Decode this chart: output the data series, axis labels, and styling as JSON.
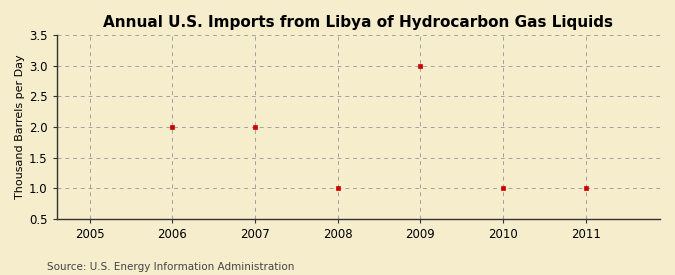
{
  "title": "Annual U.S. Imports from Libya of Hydrocarbon Gas Liquids",
  "ylabel": "Thousand Barrels per Day",
  "source": "Source: U.S. Energy Information Administration",
  "years": [
    2006,
    2007,
    2008,
    2009,
    2010,
    2011
  ],
  "values": [
    2.0,
    2.0,
    1.0,
    3.0,
    1.0,
    1.0
  ],
  "xlim": [
    2004.6,
    2011.9
  ],
  "ylim": [
    0.5,
    3.5
  ],
  "xticks": [
    2005,
    2006,
    2007,
    2008,
    2009,
    2010,
    2011
  ],
  "yticks": [
    0.5,
    1.0,
    1.5,
    2.0,
    2.5,
    3.0,
    3.5
  ],
  "background_color": "#f5edcc",
  "plot_bg_color": "#f5edcc",
  "marker_color": "#cc0000",
  "marker": "s",
  "marker_size": 3.5,
  "grid_color": "#999999",
  "title_fontsize": 11,
  "label_fontsize": 8,
  "tick_fontsize": 8.5,
  "source_fontsize": 7.5
}
